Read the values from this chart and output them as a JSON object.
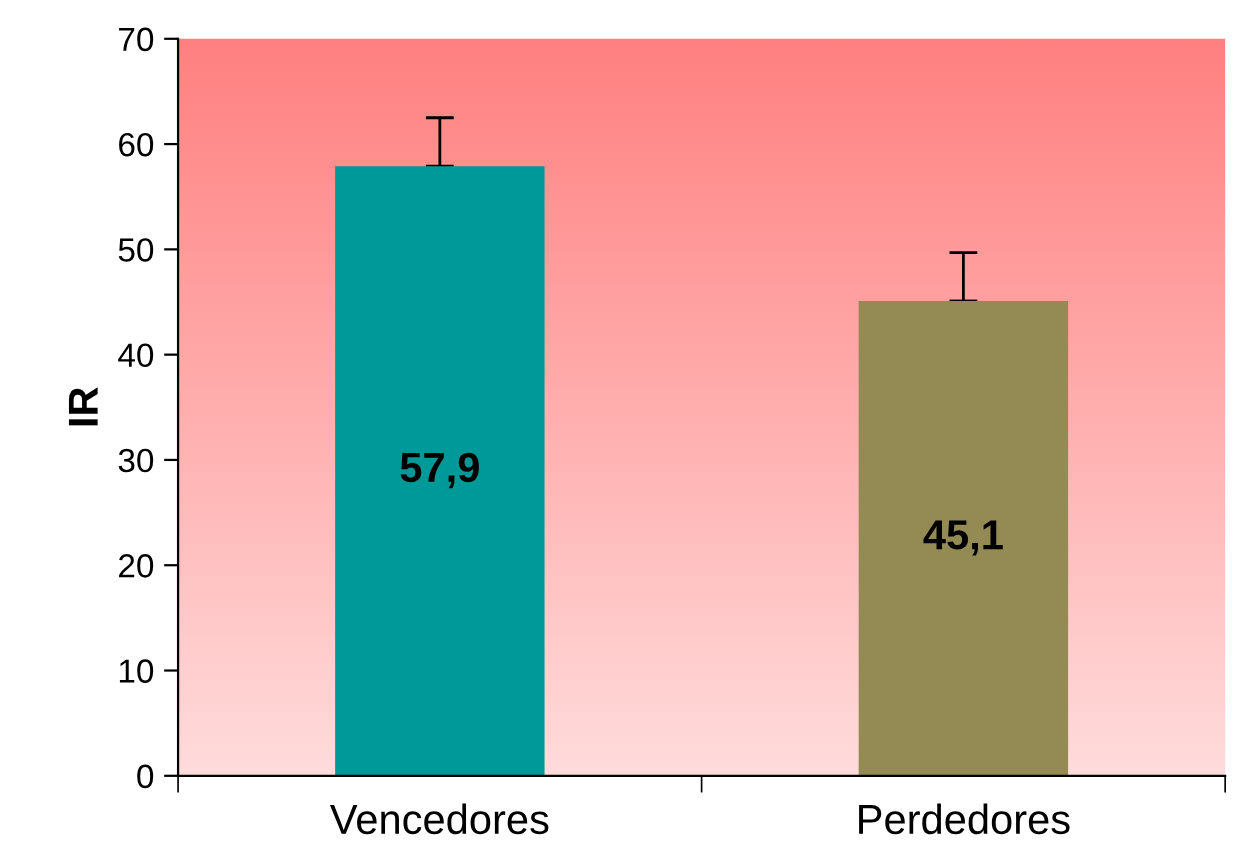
{
  "chart_data": {
    "type": "bar",
    "ylabel": "IR",
    "categories": [
      "Vencedores",
      "Perdedores"
    ],
    "values": [
      57.9,
      45.1
    ],
    "colors": [
      "#009999",
      "#948a54"
    ],
    "value_labels": [
      "57,9",
      "45,1"
    ],
    "errors": [
      [
        57.9,
        62.5
      ],
      [
        45.1,
        49.7
      ]
    ],
    "ylim": [
      0,
      70
    ],
    "yticks": [
      0,
      10,
      20,
      30,
      40,
      50,
      60,
      70
    ],
    "grid": false
  }
}
